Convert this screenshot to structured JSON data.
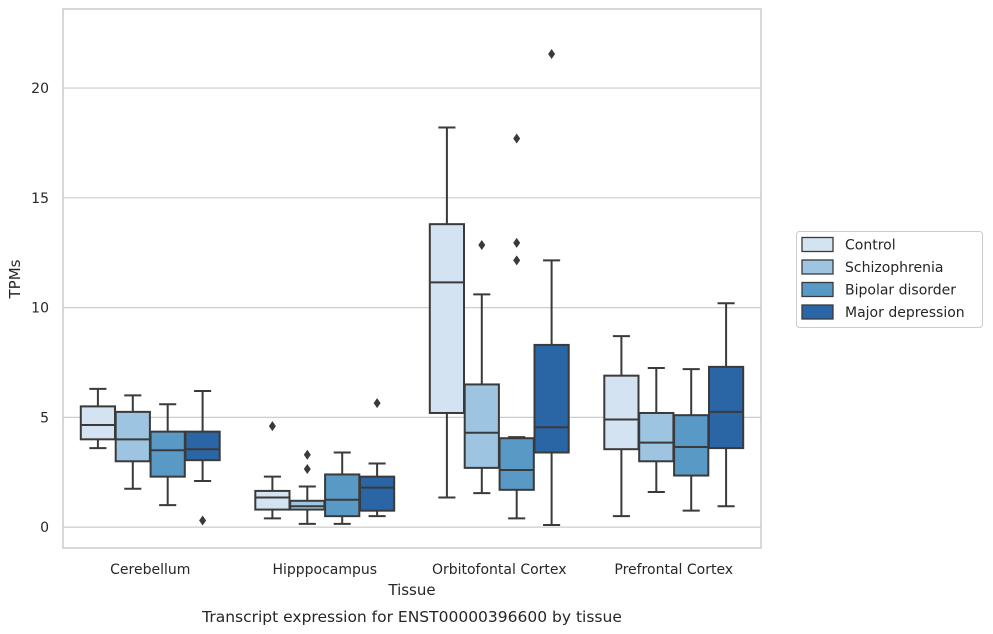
{
  "caption": "Transcript expression for ENST00000396600 by tissue",
  "chart_data": {
    "type": "box",
    "xlabel": "Tissue",
    "ylabel": "TPMs",
    "ylim": [
      -0.95,
      23.6
    ],
    "yticks": [
      0,
      5,
      10,
      15,
      20
    ],
    "grid": true,
    "legend_position": "right",
    "categories": [
      "Cerebellum",
      "Hipppocampus",
      "Orbitofontal Cortex",
      "Prefrontal Cortex"
    ],
    "series": [
      {
        "name": "Control",
        "color": "#d4e3f2",
        "boxes": [
          {
            "whisker_low": 3.6,
            "q1": 4.0,
            "median": 4.65,
            "q3": 5.5,
            "whisker_high": 6.3,
            "outliers": []
          },
          {
            "whisker_low": 0.4,
            "q1": 0.8,
            "median": 1.35,
            "q3": 1.65,
            "whisker_high": 2.3,
            "outliers": [
              4.6
            ]
          },
          {
            "whisker_low": 1.35,
            "q1": 5.2,
            "median": 11.15,
            "q3": 13.8,
            "whisker_high": 18.2,
            "outliers": []
          },
          {
            "whisker_low": 0.5,
            "q1": 3.55,
            "median": 4.9,
            "q3": 6.9,
            "whisker_high": 8.7,
            "outliers": []
          }
        ]
      },
      {
        "name": "Schizophrenia",
        "color": "#9dc4e0",
        "boxes": [
          {
            "whisker_low": 1.75,
            "q1": 3.0,
            "median": 4.0,
            "q3": 5.25,
            "whisker_high": 6.0,
            "outliers": []
          },
          {
            "whisker_low": 0.15,
            "q1": 0.8,
            "median": 0.95,
            "q3": 1.2,
            "whisker_high": 1.85,
            "outliers": [
              2.65,
              3.3
            ]
          },
          {
            "whisker_low": 1.55,
            "q1": 2.7,
            "median": 4.3,
            "q3": 6.5,
            "whisker_high": 10.6,
            "outliers": [
              12.85
            ]
          },
          {
            "whisker_low": 1.6,
            "q1": 3.0,
            "median": 3.85,
            "q3": 5.2,
            "whisker_high": 7.25,
            "outliers": []
          }
        ]
      },
      {
        "name": "Bipolar disorder",
        "color": "#5899c6",
        "boxes": [
          {
            "whisker_low": 1.0,
            "q1": 2.3,
            "median": 3.5,
            "q3": 4.35,
            "whisker_high": 5.6,
            "outliers": []
          },
          {
            "whisker_low": 0.15,
            "q1": 0.5,
            "median": 1.25,
            "q3": 2.4,
            "whisker_high": 3.4,
            "outliers": []
          },
          {
            "whisker_low": 0.4,
            "q1": 1.7,
            "median": 2.6,
            "q3": 4.05,
            "whisker_high": 4.1,
            "outliers": [
              12.15,
              12.95,
              17.7
            ]
          },
          {
            "whisker_low": 0.75,
            "q1": 2.35,
            "median": 3.65,
            "q3": 5.1,
            "whisker_high": 7.2,
            "outliers": []
          }
        ]
      },
      {
        "name": "Major depression",
        "color": "#2a66a6",
        "boxes": [
          {
            "whisker_low": 2.1,
            "q1": 3.05,
            "median": 3.55,
            "q3": 4.35,
            "whisker_high": 6.2,
            "outliers": [
              0.3
            ]
          },
          {
            "whisker_low": 0.5,
            "q1": 0.75,
            "median": 1.8,
            "q3": 2.3,
            "whisker_high": 2.9,
            "outliers": [
              5.65
            ]
          },
          {
            "whisker_low": 0.1,
            "q1": 3.4,
            "median": 4.55,
            "q3": 8.3,
            "whisker_high": 12.15,
            "outliers": [
              21.55
            ]
          },
          {
            "whisker_low": 0.95,
            "q1": 3.6,
            "median": 5.25,
            "q3": 7.3,
            "whisker_high": 10.2,
            "outliers": []
          }
        ]
      }
    ]
  }
}
